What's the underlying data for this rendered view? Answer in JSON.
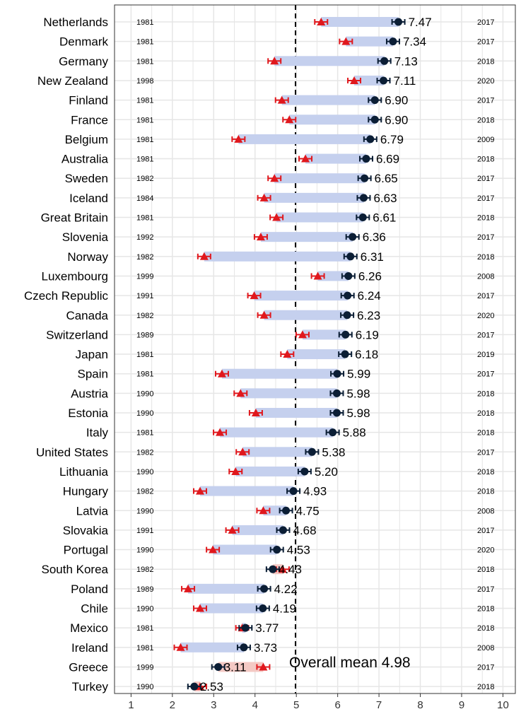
{
  "chart_data": {
    "type": "dumbbell",
    "xlim": [
      0.6,
      10.3
    ],
    "xticks": [
      "1",
      "2",
      "3",
      "4",
      "5",
      "6",
      "7",
      "8",
      "9",
      "10"
    ],
    "grid": true,
    "overall_mean": {
      "value": 4.98,
      "label": "Overall mean 4.98"
    },
    "colors": {
      "increase_bar": "#c5d0ee",
      "decrease_bar": "#f4c9c4",
      "start_marker": "#e0181d",
      "end_marker": "#0b1e35",
      "grid": "#e6e6e6"
    },
    "rows": [
      {
        "country": "Netherlands",
        "start_year": "1981",
        "end_year": "2017",
        "start_value": 5.6,
        "end_value": 7.47,
        "label": "7.47"
      },
      {
        "country": "Denmark",
        "start_year": "1981",
        "end_year": "2017",
        "start_value": 6.2,
        "end_value": 7.34,
        "label": "7.34"
      },
      {
        "country": "Germany",
        "start_year": "1981",
        "end_year": "2018",
        "start_value": 4.47,
        "end_value": 7.13,
        "label": "7.13"
      },
      {
        "country": "New Zealand",
        "start_year": "1998",
        "end_year": "2020",
        "start_value": 6.4,
        "end_value": 7.11,
        "label": "7.11"
      },
      {
        "country": "Finland",
        "start_year": "1981",
        "end_year": "2017",
        "start_value": 4.65,
        "end_value": 6.9,
        "label": "6.90"
      },
      {
        "country": "France",
        "start_year": "1981",
        "end_year": "2018",
        "start_value": 4.83,
        "end_value": 6.9,
        "label": "6.90"
      },
      {
        "country": "Belgium",
        "start_year": "1981",
        "end_year": "2009",
        "start_value": 3.6,
        "end_value": 6.79,
        "label": "6.79"
      },
      {
        "country": "Australia",
        "start_year": "1981",
        "end_year": "2018",
        "start_value": 5.22,
        "end_value": 6.69,
        "label": "6.69"
      },
      {
        "country": "Sweden",
        "start_year": "1982",
        "end_year": "2017",
        "start_value": 4.47,
        "end_value": 6.65,
        "label": "6.65"
      },
      {
        "country": "Iceland",
        "start_year": "1984",
        "end_year": "2017",
        "start_value": 4.22,
        "end_value": 6.63,
        "label": "6.63"
      },
      {
        "country": "Great Britain",
        "start_year": "1981",
        "end_year": "2018",
        "start_value": 4.52,
        "end_value": 6.61,
        "label": "6.61"
      },
      {
        "country": "Slovenia",
        "start_year": "1992",
        "end_year": "2017",
        "start_value": 4.14,
        "end_value": 6.36,
        "label": "6.36"
      },
      {
        "country": "Norway",
        "start_year": "1982",
        "end_year": "2018",
        "start_value": 2.77,
        "end_value": 6.31,
        "label": "6.31"
      },
      {
        "country": "Luxembourg",
        "start_year": "1999",
        "end_year": "2008",
        "start_value": 5.52,
        "end_value": 6.26,
        "label": "6.26"
      },
      {
        "country": "Czech Republic",
        "start_year": "1991",
        "end_year": "2017",
        "start_value": 3.98,
        "end_value": 6.24,
        "label": "6.24"
      },
      {
        "country": "Canada",
        "start_year": "1982",
        "end_year": "2020",
        "start_value": 4.22,
        "end_value": 6.23,
        "label": "6.23"
      },
      {
        "country": "Switzerland",
        "start_year": "1989",
        "end_year": "2017",
        "start_value": 5.15,
        "end_value": 6.19,
        "label": "6.19"
      },
      {
        "country": "Japan",
        "start_year": "1981",
        "end_year": "2019",
        "start_value": 4.78,
        "end_value": 6.18,
        "label": "6.18"
      },
      {
        "country": "Spain",
        "start_year": "1981",
        "end_year": "2017",
        "start_value": 3.2,
        "end_value": 5.99,
        "label": "5.99"
      },
      {
        "country": "Austria",
        "start_year": "1990",
        "end_year": "2018",
        "start_value": 3.65,
        "end_value": 5.98,
        "label": "5.98"
      },
      {
        "country": "Estonia",
        "start_year": "1990",
        "end_year": "2018",
        "start_value": 4.02,
        "end_value": 5.98,
        "label": "5.98"
      },
      {
        "country": "Italy",
        "start_year": "1981",
        "end_year": "2018",
        "start_value": 3.15,
        "end_value": 5.88,
        "label": "5.88"
      },
      {
        "country": "United States",
        "start_year": "1982",
        "end_year": "2017",
        "start_value": 3.7,
        "end_value": 5.38,
        "label": "5.38"
      },
      {
        "country": "Lithuania",
        "start_year": "1990",
        "end_year": "2018",
        "start_value": 3.53,
        "end_value": 5.2,
        "label": "5.20"
      },
      {
        "country": "Hungary",
        "start_year": "1982",
        "end_year": "2018",
        "start_value": 2.67,
        "end_value": 4.93,
        "label": "4.93"
      },
      {
        "country": "Latvia",
        "start_year": "1990",
        "end_year": "2008",
        "start_value": 4.2,
        "end_value": 4.75,
        "label": "4.75"
      },
      {
        "country": "Slovakia",
        "start_year": "1991",
        "end_year": "2017",
        "start_value": 3.45,
        "end_value": 4.68,
        "label": "4.68"
      },
      {
        "country": "Portugal",
        "start_year": "1990",
        "end_year": "2020",
        "start_value": 2.98,
        "end_value": 4.53,
        "label": "4.53"
      },
      {
        "country": "South Korea",
        "start_year": "1982",
        "end_year": "2018",
        "start_value": 4.67,
        "end_value": 4.43,
        "label": "4.43"
      },
      {
        "country": "Poland",
        "start_year": "1989",
        "end_year": "2017",
        "start_value": 2.38,
        "end_value": 4.22,
        "label": "4.22"
      },
      {
        "country": "Chile",
        "start_year": "1990",
        "end_year": "2018",
        "start_value": 2.67,
        "end_value": 4.19,
        "label": "4.19"
      },
      {
        "country": "Mexico",
        "start_year": "1981",
        "end_year": "2018",
        "start_value": 3.69,
        "end_value": 3.77,
        "label": "3.77"
      },
      {
        "country": "Ireland",
        "start_year": "1981",
        "end_year": "2008",
        "start_value": 2.2,
        "end_value": 3.73,
        "label": "3.73"
      },
      {
        "country": "Greece",
        "start_year": "1999",
        "end_year": "2017",
        "start_value": 4.2,
        "end_value": 3.11,
        "label": "3.11"
      },
      {
        "country": "Turkey",
        "start_year": "1990",
        "end_year": "2018",
        "start_value": 2.67,
        "end_value": 2.53,
        "label": "2.53"
      }
    ]
  }
}
